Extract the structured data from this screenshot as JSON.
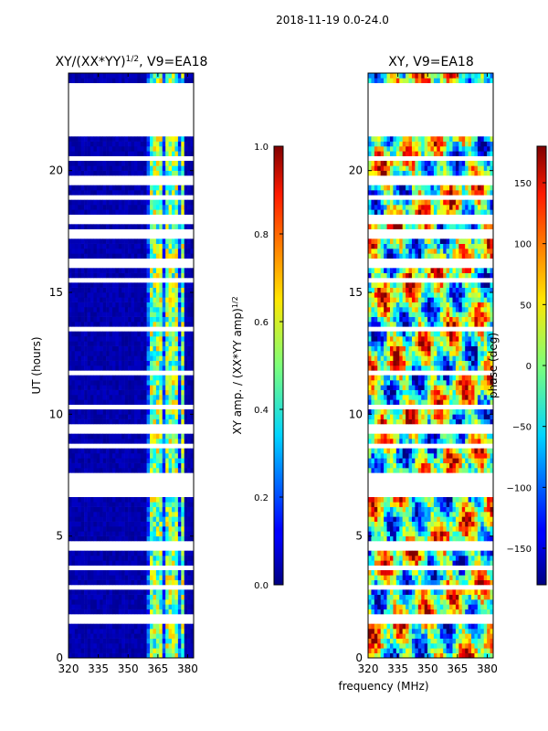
{
  "page": {
    "suptitle": "2018-11-19 0.0-24.0",
    "shared_xlabel": "frequency (MHz)"
  },
  "chart_data": [
    {
      "type": "heatmap",
      "title_main": "XY/(XX*YY)",
      "title_exp": "1/2",
      "title_suffix": ", V9=EA18",
      "xlabel": "",
      "ylabel": "UT (hours)",
      "xlim": [
        320,
        383
      ],
      "ylim": [
        0,
        24
      ],
      "xticks": [
        320,
        335,
        350,
        365,
        380
      ],
      "yticks": [
        0,
        5,
        10,
        15,
        20
      ],
      "colorbar": {
        "label_main": "XY amp. / (XX*YY amp)",
        "label_exp": "1/2",
        "range": [
          0.0,
          1.0
        ],
        "ticks": [
          "0.0",
          "0.2",
          "0.4",
          "0.6",
          "0.8",
          "1.0"
        ],
        "colormap": "jet"
      },
      "description_values": {
        "background_value": 0.0,
        "active_band_MHz": [
          360,
          378
        ],
        "active_band_values": [
          0.3,
          0.7
        ]
      },
      "gaps_hours": [
        [
          21.4,
          22.8
        ],
        [
          7.1,
          7.5
        ],
        [
          6.6,
          7.0
        ],
        [
          19.5,
          19.8
        ],
        [
          18.8,
          19.0
        ],
        [
          16.0,
          16.4
        ],
        [
          17.2,
          17.5
        ],
        [
          15.3,
          15.5
        ],
        [
          23.3,
          23.5
        ],
        [
          22.9,
          23.1
        ],
        [
          11.6,
          11.8
        ],
        [
          9.3,
          9.5
        ],
        [
          8.6,
          8.8
        ],
        [
          4.5,
          4.7
        ],
        [
          3.7,
          3.9
        ],
        [
          2.8,
          3.0
        ],
        [
          1.5,
          1.7
        ],
        [
          13.4,
          13.6
        ],
        [
          10.2,
          10.4
        ],
        [
          20.4,
          20.6
        ],
        [
          17.9,
          18.1
        ]
      ]
    },
    {
      "type": "heatmap",
      "title_main": "XY, V9=EA18",
      "title_exp": "",
      "title_suffix": "",
      "xlabel": "",
      "ylabel": "",
      "xlim": [
        320,
        383
      ],
      "ylim": [
        0,
        24
      ],
      "xticks": [
        320,
        335,
        350,
        365,
        380
      ],
      "yticks": [
        0,
        5,
        10,
        15,
        20
      ],
      "colorbar": {
        "label_main": "phase (deg)",
        "label_exp": "",
        "range": [
          -180,
          180
        ],
        "ticks": [
          "−150",
          "−100",
          "−50",
          "0",
          "50",
          "100",
          "150"
        ],
        "tick_values": [
          -150,
          -100,
          -50,
          0,
          50,
          100,
          150
        ],
        "colormap": "jet"
      },
      "description_values": {
        "value_range_deg": [
          -180,
          180
        ]
      },
      "gaps_hours": [
        [
          21.4,
          22.8
        ],
        [
          7.1,
          7.5
        ],
        [
          6.6,
          7.0
        ],
        [
          19.5,
          19.8
        ],
        [
          18.8,
          19.0
        ],
        [
          16.0,
          16.4
        ],
        [
          17.2,
          17.5
        ],
        [
          15.3,
          15.5
        ],
        [
          23.3,
          23.5
        ],
        [
          22.9,
          23.1
        ],
        [
          11.6,
          11.8
        ],
        [
          9.3,
          9.5
        ],
        [
          8.6,
          8.8
        ],
        [
          4.5,
          4.7
        ],
        [
          3.7,
          3.9
        ],
        [
          2.8,
          3.0
        ],
        [
          1.5,
          1.7
        ],
        [
          13.4,
          13.6
        ],
        [
          10.2,
          10.4
        ],
        [
          20.4,
          20.6
        ],
        [
          17.9,
          18.1
        ]
      ]
    }
  ]
}
